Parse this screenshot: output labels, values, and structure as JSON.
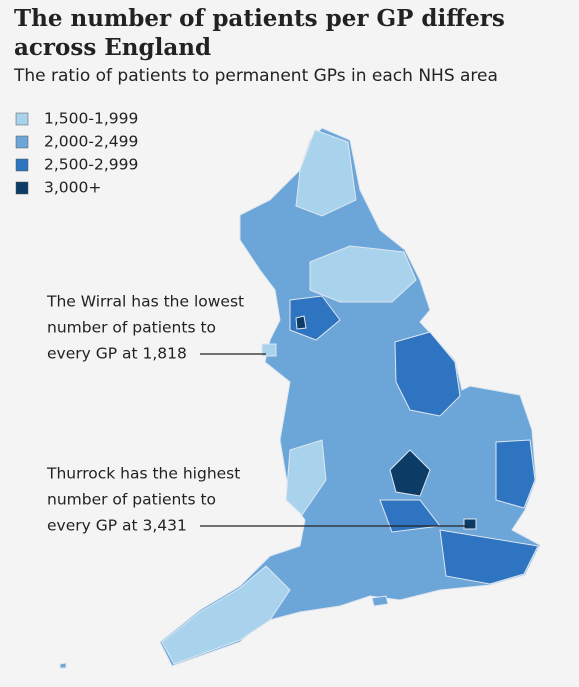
{
  "header": {
    "title": "The number of patients per GP differs across England",
    "subtitle": "The ratio of patients to permanent GPs in each NHS area"
  },
  "legend": {
    "items": [
      {
        "label": "1,500-1,999",
        "color": "#a9d3ec"
      },
      {
        "label": "2,000-2,499",
        "color": "#6ca6d9"
      },
      {
        "label": "2,500-2,999",
        "color": "#2f74c0"
      },
      {
        "label": "3,000+",
        "color": "#0c3c66"
      }
    ]
  },
  "annotations": [
    {
      "lines": [
        "The Wirral has the lowest",
        "number of patients to",
        "every GP at 1,818"
      ]
    },
    {
      "lines": [
        "Thurrock has the highest",
        "number of patients to",
        "every GP at 3,431"
      ]
    }
  ]
}
